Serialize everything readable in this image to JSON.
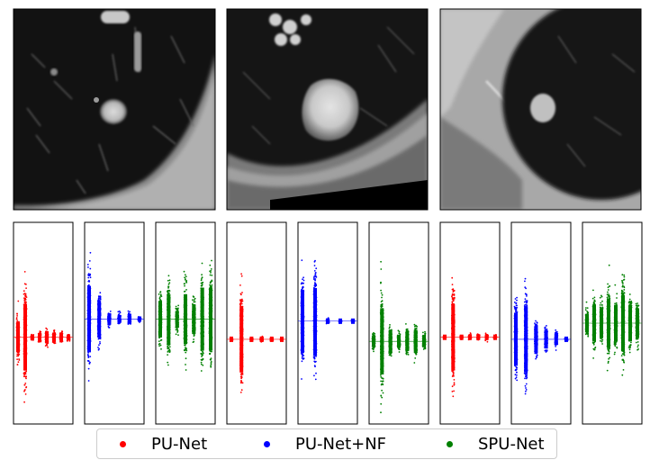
{
  "colors": {
    "background": "#ffffff",
    "axis_frame": "#000000",
    "pu_net": "#ff0000",
    "pu_net_nf": "#0000ff",
    "spu_net": "#008000"
  },
  "ct_images": [
    {
      "name": "ct-image-1",
      "description_tag": "small-nodule"
    },
    {
      "name": "ct-image-2",
      "description_tag": "large-nodule"
    },
    {
      "name": "ct-image-3",
      "description_tag": "pleural-nodule"
    }
  ],
  "legend": {
    "items": [
      {
        "label": "PU-Net",
        "color": "#ff0000"
      },
      {
        "label": "PU-Net+NF",
        "color": "#0000ff"
      },
      {
        "label": "SPU-Net",
        "color": "#008000"
      }
    ]
  },
  "chart_data": {
    "type": "scatter",
    "description_of_panels": "Nine strip panels grouped per CT case; each shows vertical scatter spreads (relative magnitude 0–1) at several positions.",
    "groups": [
      {
        "case": 1,
        "panels": [
          {
            "series": "PU-Net",
            "color": "#ff0000",
            "center": 0.57,
            "spreads": [
              0.45,
              1.0,
              0.05,
              0.12,
              0.18,
              0.14,
              0.11,
              0.08
            ]
          },
          {
            "series": "PU-Net+NF",
            "color": "#0000ff",
            "center": 0.48,
            "spreads": [
              1.0,
              0.55,
              0.17,
              0.12,
              0.14,
              0.05
            ]
          },
          {
            "series": "SPU-Net",
            "color": "#008000",
            "center": 0.48,
            "spreads": [
              0.55,
              0.75,
              0.25,
              0.75,
              0.45,
              0.95,
              0.95
            ]
          }
        ]
      },
      {
        "case": 2,
        "panels": [
          {
            "series": "PU-Net",
            "color": "#ff0000",
            "center": 0.58,
            "spreads": [
              0.03,
              1.0,
              0.04,
              0.05,
              0.03,
              0.03
            ]
          },
          {
            "series": "PU-Net+NF",
            "color": "#0000ff",
            "center": 0.49,
            "spreads": [
              0.95,
              1.0,
              0.05,
              0.04,
              0.03
            ]
          },
          {
            "series": "SPU-Net",
            "color": "#008000",
            "center": 0.59,
            "spreads": [
              0.15,
              1.0,
              0.35,
              0.2,
              0.28,
              0.35,
              0.18
            ]
          }
        ]
      },
      {
        "case": 3,
        "panels": [
          {
            "series": "PU-Net",
            "color": "#ff0000",
            "center": 0.57,
            "spreads": [
              0.03,
              1.0,
              0.04,
              0.06,
              0.06,
              0.07,
              0.05
            ]
          },
          {
            "series": "PU-Net+NF",
            "color": "#0000ff",
            "center": 0.58,
            "spreads": [
              0.8,
              1.0,
              0.4,
              0.28,
              0.17,
              0.04
            ]
          },
          {
            "series": "SPU-Net",
            "color": "#008000",
            "center": 0.5,
            "spreads": [
              0.28,
              0.55,
              0.45,
              0.75,
              0.55,
              0.85,
              0.55,
              0.45
            ]
          }
        ]
      }
    ]
  }
}
